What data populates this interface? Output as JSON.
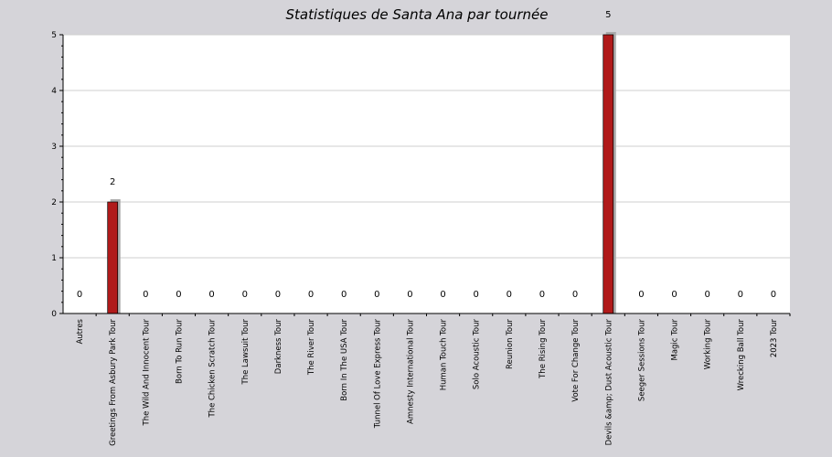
{
  "chart_data": {
    "type": "bar",
    "title": "Statistiques de Santa Ana par tournée",
    "xlabel": "",
    "ylabel": "",
    "ylim": [
      0,
      5
    ],
    "yticks": [
      "0",
      "1",
      "2",
      "3",
      "4",
      "5"
    ],
    "grid": true,
    "legend": "none",
    "bar_color": "#b01a1a",
    "shadow_color": "#aaaaaa",
    "categories": [
      "Autres",
      "Greetings From Asbury Park Tour",
      "The Wild And Innocent Tour",
      "Born To Run Tour",
      "The Chicken Scratch Tour",
      "The Lawsuit Tour",
      "Darkness Tour",
      "The River Tour",
      "Born In The USA Tour",
      "Tunnel Of Love Express Tour",
      "Amnesty International Tour",
      "Human Touch Tour",
      "Solo Acoustic Tour",
      "Reunion Tour",
      "The Rising Tour",
      "Vote For Change Tour",
      "Devils &amp; Dust Acoustic Tour",
      "Seeger Sessions Tour",
      "Magic Tour",
      "Working Tour",
      "Wrecking Ball Tour",
      "2023 Tour"
    ],
    "values": [
      0,
      2,
      0,
      0,
      0,
      0,
      0,
      0,
      0,
      0,
      0,
      0,
      0,
      0,
      0,
      0,
      5,
      0,
      0,
      0,
      0,
      0
    ],
    "data_labels": [
      "0",
      "2",
      "0",
      "0",
      "0",
      "0",
      "0",
      "0",
      "0",
      "0",
      "0",
      "0",
      "0",
      "0",
      "0",
      "0",
      "5",
      "0",
      "0",
      "0",
      "0",
      "0"
    ]
  }
}
